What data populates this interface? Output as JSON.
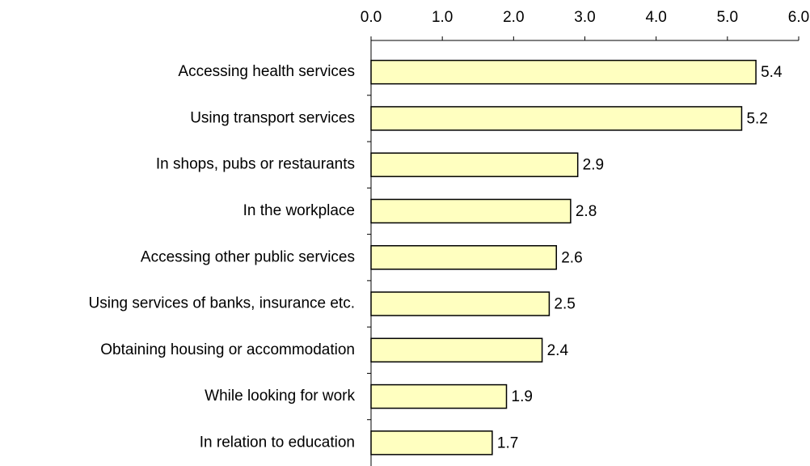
{
  "chart_data": {
    "type": "bar",
    "orientation": "horizontal",
    "categories": [
      "Accessing health services",
      "Using transport services",
      "In shops, pubs or restaurants",
      "In the workplace",
      "Accessing other public services",
      "Using services of banks, insurance etc.",
      "Obtaining housing or accommodation",
      "While looking for work",
      "In relation to education"
    ],
    "values": [
      5.4,
      5.2,
      2.9,
      2.8,
      2.6,
      2.5,
      2.4,
      1.9,
      1.7
    ],
    "color": "#ffffc0",
    "xlim": [
      0,
      6
    ],
    "xticks": [
      {
        "value": 0,
        "label": "0.0"
      },
      {
        "value": 1,
        "label": "1.0"
      },
      {
        "value": 2,
        "label": "2.0"
      },
      {
        "value": 3,
        "label": "3.0"
      },
      {
        "value": 4,
        "label": "4.0"
      },
      {
        "value": 5,
        "label": "5.0"
      },
      {
        "value": 6,
        "label": "6.0"
      }
    ],
    "grid": false
  }
}
